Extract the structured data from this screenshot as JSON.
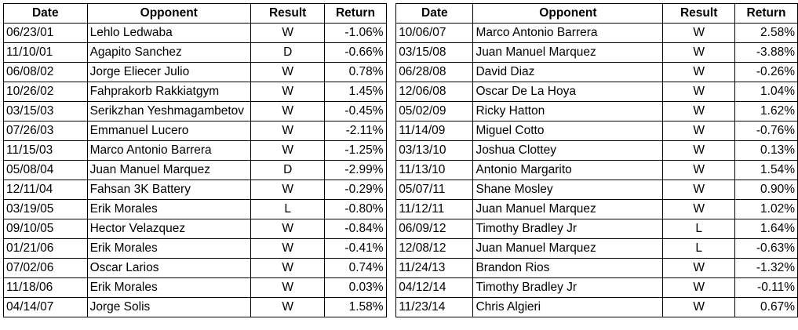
{
  "headers": {
    "date": "Date",
    "opponent": "Opponent",
    "result": "Result",
    "return": "Return"
  },
  "left_rows": [
    {
      "date": "06/23/01",
      "opponent": "Lehlo Ledwaba",
      "result": "W",
      "return": "-1.06%"
    },
    {
      "date": "11/10/01",
      "opponent": "Agapito Sanchez",
      "result": "D",
      "return": "-0.66%"
    },
    {
      "date": "06/08/02",
      "opponent": "Jorge Eliecer Julio",
      "result": "W",
      "return": "0.78%"
    },
    {
      "date": "10/26/02",
      "opponent": "Fahprakorb Rakkiatgym",
      "result": "W",
      "return": "1.45%"
    },
    {
      "date": "03/15/03",
      "opponent": "Serikzhan Yeshmagambetov",
      "result": "W",
      "return": "-0.45%"
    },
    {
      "date": "07/26/03",
      "opponent": "Emmanuel Lucero",
      "result": "W",
      "return": "-2.11%"
    },
    {
      "date": "11/15/03",
      "opponent": "Marco Antonio Barrera",
      "result": "W",
      "return": "-1.25%"
    },
    {
      "date": "05/08/04",
      "opponent": "Juan Manuel Marquez",
      "result": "D",
      "return": "-2.99%"
    },
    {
      "date": "12/11/04",
      "opponent": "Fahsan 3K Battery",
      "result": "W",
      "return": "-0.29%"
    },
    {
      "date": "03/19/05",
      "opponent": "Erik Morales",
      "result": "L",
      "return": "-0.80%"
    },
    {
      "date": "09/10/05",
      "opponent": "Hector Velazquez",
      "result": "W",
      "return": "-0.84%"
    },
    {
      "date": "01/21/06",
      "opponent": "Erik Morales",
      "result": "W",
      "return": "-0.41%"
    },
    {
      "date": "07/02/06",
      "opponent": "Oscar Larios",
      "result": "W",
      "return": "0.74%"
    },
    {
      "date": "11/18/06",
      "opponent": "Erik Morales",
      "result": "W",
      "return": "0.03%"
    },
    {
      "date": "04/14/07",
      "opponent": "Jorge Solis",
      "result": "W",
      "return": "1.58%"
    }
  ],
  "right_rows": [
    {
      "date": "10/06/07",
      "opponent": "Marco Antonio Barrera",
      "result": "W",
      "return": "2.58%"
    },
    {
      "date": "03/15/08",
      "opponent": "Juan Manuel Marquez",
      "result": "W",
      "return": "-3.88%"
    },
    {
      "date": "06/28/08",
      "opponent": "David Diaz",
      "result": "W",
      "return": "-0.26%"
    },
    {
      "date": "12/06/08",
      "opponent": "Oscar De La Hoya",
      "result": "W",
      "return": "1.04%"
    },
    {
      "date": "05/02/09",
      "opponent": "Ricky Hatton",
      "result": "W",
      "return": "1.62%"
    },
    {
      "date": "11/14/09",
      "opponent": "Miguel Cotto",
      "result": "W",
      "return": "-0.76%"
    },
    {
      "date": "03/13/10",
      "opponent": "Joshua Clottey",
      "result": "W",
      "return": "0.13%"
    },
    {
      "date": "11/13/10",
      "opponent": "Antonio Margarito",
      "result": "W",
      "return": "1.54%"
    },
    {
      "date": "05/07/11",
      "opponent": "Shane Mosley",
      "result": "W",
      "return": "0.90%"
    },
    {
      "date": "11/12/11",
      "opponent": "Juan Manuel Marquez",
      "result": "W",
      "return": "1.02%"
    },
    {
      "date": "06/09/12",
      "opponent": "Timothy Bradley Jr",
      "result": "L",
      "return": "1.64%"
    },
    {
      "date": "12/08/12",
      "opponent": "Juan Manuel Marquez",
      "result": "L",
      "return": "-0.63%"
    },
    {
      "date": "11/24/13",
      "opponent": "Brandon Rios",
      "result": "W",
      "return": "-1.32%"
    },
    {
      "date": "04/12/14",
      "opponent": "Timothy Bradley Jr",
      "result": "W",
      "return": "-0.11%"
    },
    {
      "date": "11/23/14",
      "opponent": "Chris Algieri",
      "result": "W",
      "return": "0.67%"
    }
  ]
}
